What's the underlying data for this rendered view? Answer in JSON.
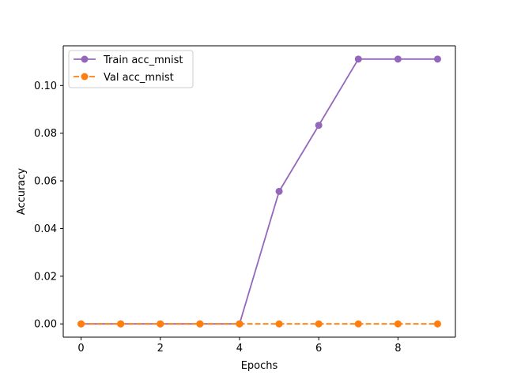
{
  "chart_data": {
    "type": "line",
    "title": "",
    "xlabel": "Epochs",
    "ylabel": "Accuracy",
    "x": [
      0,
      1,
      2,
      3,
      4,
      5,
      6,
      7,
      8,
      9
    ],
    "xlim": [
      -0.45,
      9.45
    ],
    "ylim": [
      -0.00556,
      0.11667
    ],
    "xticks": [
      0,
      2,
      4,
      6,
      8
    ],
    "yticks": [
      0.0,
      0.02,
      0.04,
      0.06,
      0.08,
      0.1
    ],
    "xtick_labels": [
      "0",
      "2",
      "4",
      "6",
      "8"
    ],
    "ytick_labels": [
      "0.00",
      "0.02",
      "0.04",
      "0.06",
      "0.08",
      "0.10"
    ],
    "grid": false,
    "legend_position": "top-left",
    "series": [
      {
        "name": "Train acc_mnist",
        "color": "#9467bd",
        "line_style": "solid",
        "marker": "circle",
        "values": [
          0,
          0,
          0,
          0,
          0,
          0.0556,
          0.0833,
          0.1111,
          0.1111,
          0.1111
        ]
      },
      {
        "name": "Val acc_mnist",
        "color": "#ff7f0e",
        "line_style": "dashed",
        "marker": "circle",
        "values": [
          0,
          0,
          0,
          0,
          0,
          0,
          0,
          0,
          0,
          0
        ]
      }
    ]
  }
}
